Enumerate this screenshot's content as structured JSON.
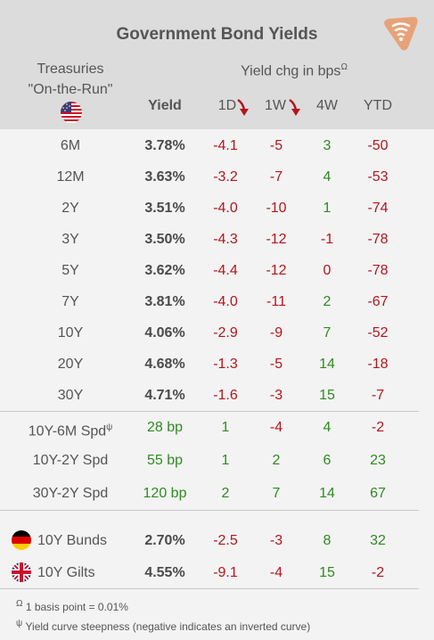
{
  "title": "Government Bond Yields",
  "treasuries": {
    "line1": "Treasuries",
    "line2": "\"On-the-Run\""
  },
  "headers": {
    "yield": "Yield",
    "chg": "Yield chg in bps",
    "chg_marker": "Ω",
    "d1": "1D",
    "w1": "1W",
    "w4": "4W",
    "ytd": "YTD"
  },
  "colors": {
    "positive": "#2e8b1f",
    "negative": "#b3161c",
    "header_bg": "#dcdcdc",
    "logo": "#e8a27a"
  },
  "treasury_rows": [
    {
      "label": "6M",
      "yield": "3.78%",
      "d1": "-4.1",
      "w1": "-5",
      "w4": "3",
      "ytd": "-50"
    },
    {
      "label": "12M",
      "yield": "3.63%",
      "d1": "-3.2",
      "w1": "-7",
      "w4": "4",
      "ytd": "-53"
    },
    {
      "label": "2Y",
      "yield": "3.51%",
      "d1": "-4.0",
      "w1": "-10",
      "w4": "1",
      "ytd": "-74"
    },
    {
      "label": "3Y",
      "yield": "3.50%",
      "d1": "-4.3",
      "w1": "-12",
      "w4": "-1",
      "ytd": "-78"
    },
    {
      "label": "5Y",
      "yield": "3.62%",
      "d1": "-4.4",
      "w1": "-12",
      "w4": "0",
      "ytd": "-78"
    },
    {
      "label": "7Y",
      "yield": "3.81%",
      "d1": "-4.0",
      "w1": "-11",
      "w4": "2",
      "ytd": "-67"
    },
    {
      "label": "10Y",
      "yield": "4.06%",
      "d1": "-2.9",
      "w1": "-9",
      "w4": "7",
      "ytd": "-52"
    },
    {
      "label": "20Y",
      "yield": "4.68%",
      "d1": "-1.3",
      "w1": "-5",
      "w4": "14",
      "ytd": "-18"
    },
    {
      "label": "30Y",
      "yield": "4.71%",
      "d1": "-1.6",
      "w1": "-3",
      "w4": "15",
      "ytd": "-7"
    }
  ],
  "spread_rows": [
    {
      "label": "10Y-6M Spd",
      "marker": "ψ",
      "yield": "28 bp",
      "d1": "1",
      "w1": "-4",
      "w4": "4",
      "ytd": "-2"
    },
    {
      "label": "10Y-2Y Spd",
      "marker": "",
      "yield": "55 bp",
      "d1": "1",
      "w1": "2",
      "w4": "6",
      "ytd": "23"
    },
    {
      "label": "30Y-2Y Spd",
      "marker": "",
      "yield": "120 bp",
      "d1": "2",
      "w1": "7",
      "w4": "14",
      "ytd": "67"
    }
  ],
  "intl_rows": [
    {
      "label": "10Y Bunds",
      "flag": "germany-flag",
      "yield": "2.70%",
      "d1": "-2.5",
      "w1": "-3",
      "w4": "8",
      "ytd": "32"
    },
    {
      "label": "10Y Gilts",
      "flag": "uk-flag",
      "yield": "4.55%",
      "d1": "-9.1",
      "w1": "-4",
      "w4": "15",
      "ytd": "-2"
    }
  ],
  "footnotes": [
    {
      "marker": "Ω",
      "text": "1 basis point = 0.01%"
    },
    {
      "marker": "ψ",
      "text": "Yield curve steepness (negative indicates an inverted curve)"
    }
  ]
}
